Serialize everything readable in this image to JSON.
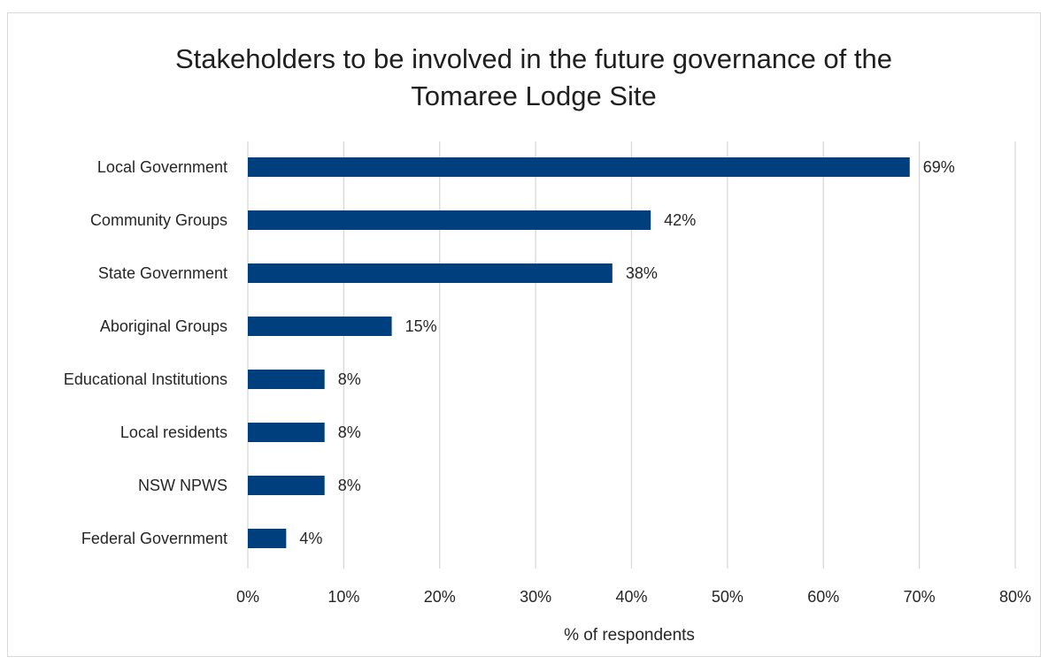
{
  "chart_data": {
    "type": "bar",
    "orientation": "horizontal",
    "title_lines": [
      "Stakeholders to be involved in the future governance of the",
      "Tomaree Lodge Site"
    ],
    "xlabel": "% of respondents",
    "ylabel": "",
    "categories": [
      "Local Government",
      "Community Groups",
      "State Government",
      "Aboriginal Groups",
      "Educational Institutions",
      "Local residents",
      "NSW NPWS",
      "Federal Government"
    ],
    "values": [
      69,
      42,
      38,
      15,
      8,
      8,
      8,
      4
    ],
    "value_labels": [
      "69%",
      "42%",
      "38%",
      "15%",
      "8%",
      "8%",
      "8%",
      "4%"
    ],
    "xlim": [
      0,
      80
    ],
    "x_ticks": [
      0,
      10,
      20,
      30,
      40,
      50,
      60,
      70,
      80
    ],
    "x_tick_labels": [
      "0%",
      "10%",
      "20%",
      "30%",
      "40%",
      "50%",
      "60%",
      "70%",
      "80%"
    ],
    "grid": "vertical",
    "legend": "none",
    "bar_color": "#003f7d",
    "grid_color": "#d9d9d9"
  }
}
